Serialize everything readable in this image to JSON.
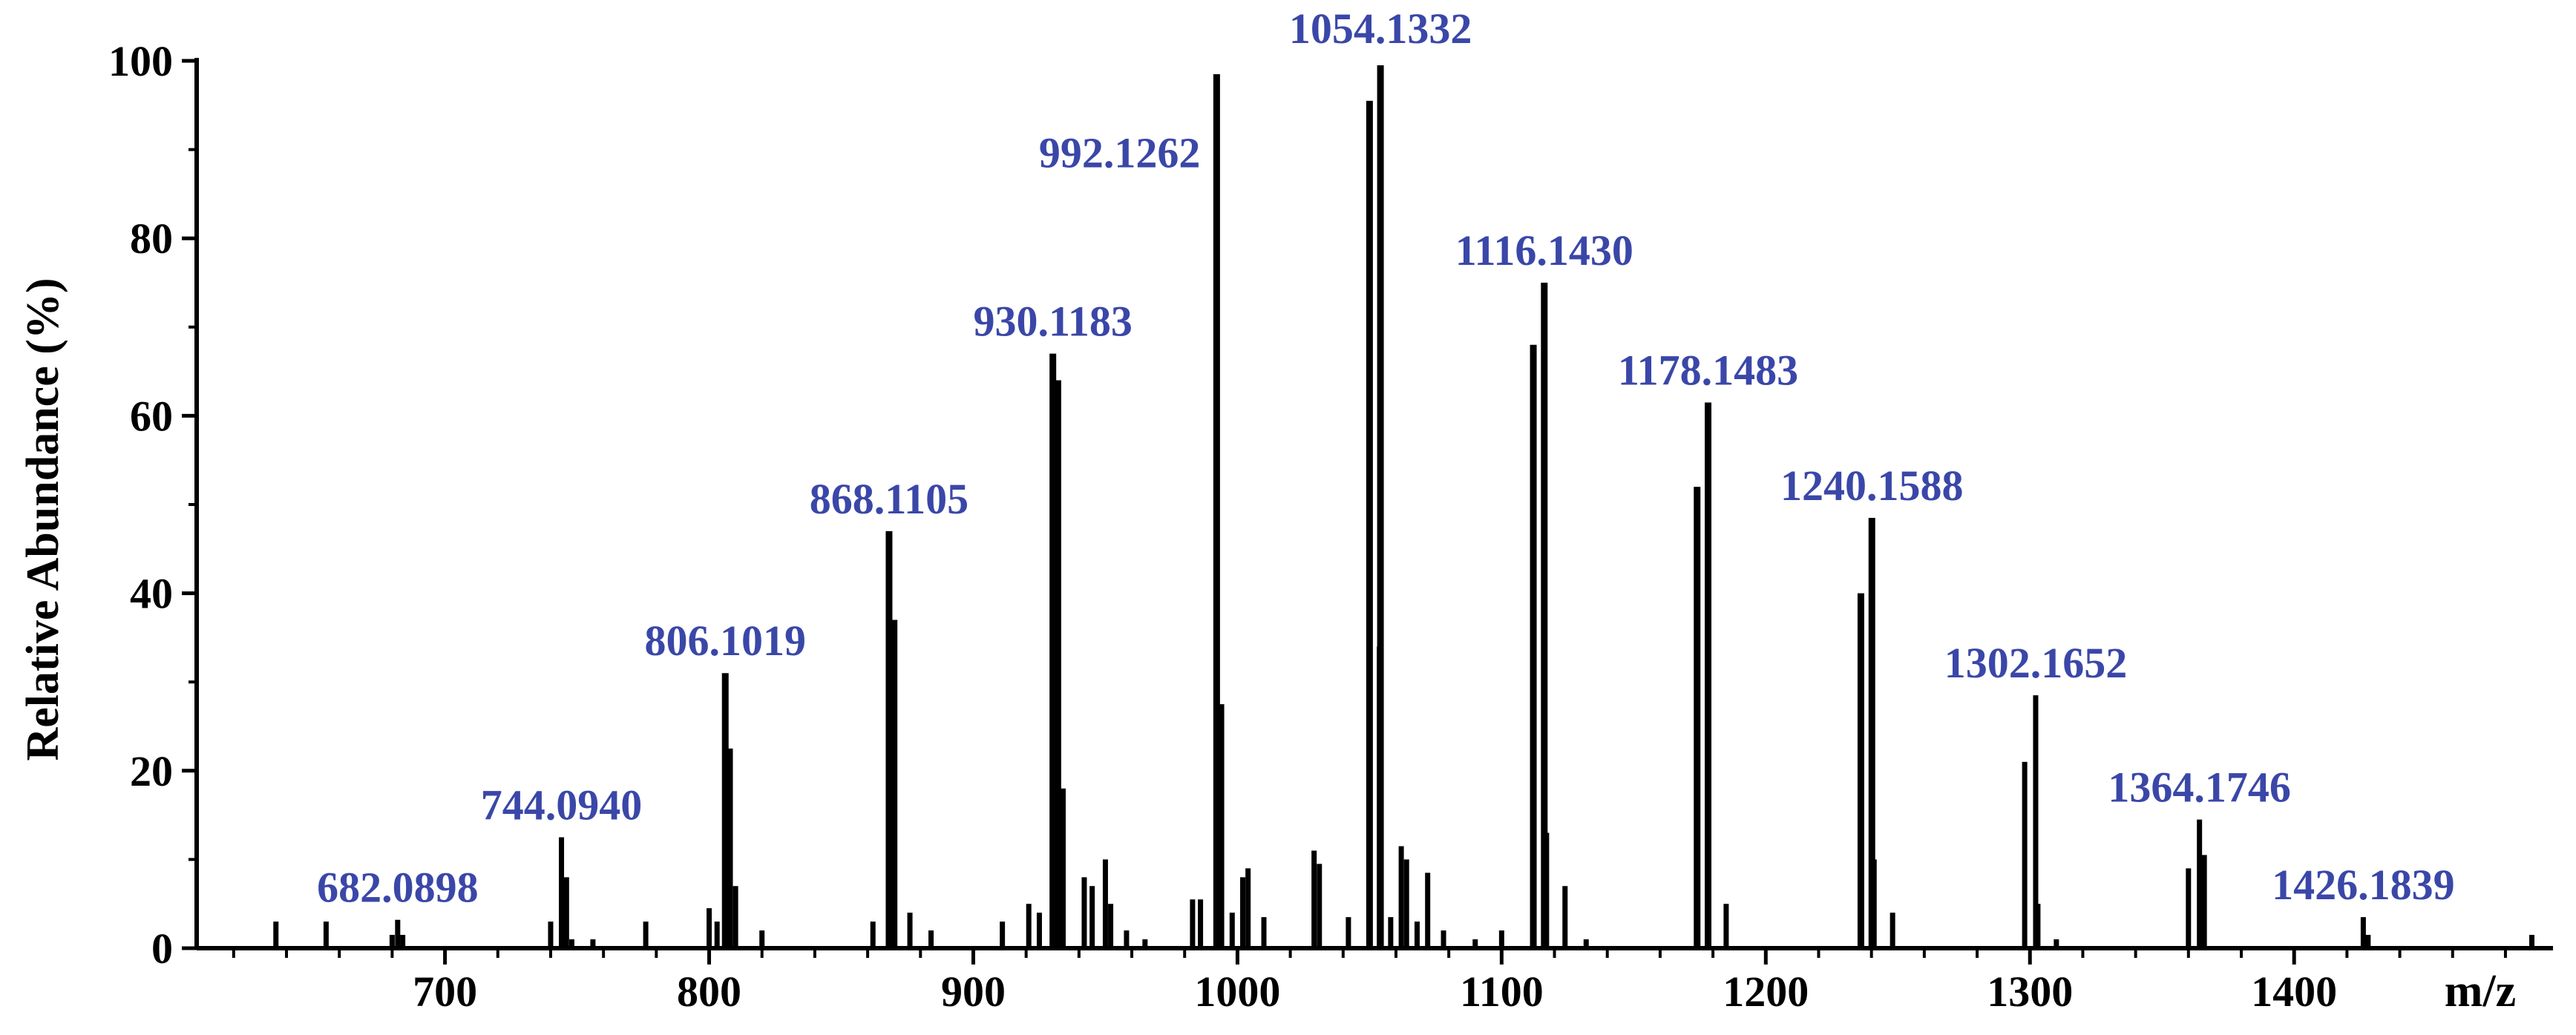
{
  "chart_data": {
    "type": "bar",
    "ylabel": "Relative Abundance (%)",
    "xlabel": "m/z",
    "xlim": [
      600,
      1500
    ],
    "ylim": [
      0,
      100
    ],
    "x_ticks": [
      700,
      800,
      900,
      1000,
      1100,
      1200,
      1300,
      1400
    ],
    "y_ticks": [
      0,
      20,
      40,
      60,
      80,
      100
    ],
    "grid": false,
    "legend": "none",
    "colors": {
      "bars": "#000000",
      "labels": "#3a47a8",
      "axes": "#000000"
    },
    "peaks": [
      {
        "x": 636,
        "y": 3
      },
      {
        "x": 655,
        "y": 3
      },
      {
        "x": 680,
        "y": 1.5
      },
      {
        "x": 682.0898,
        "y": 3.2,
        "label": "682.0898"
      },
      {
        "x": 684,
        "y": 1.5
      },
      {
        "x": 740,
        "y": 3
      },
      {
        "x": 744.094,
        "y": 12.5,
        "label": "744.0940"
      },
      {
        "x": 746,
        "y": 8
      },
      {
        "x": 748,
        "y": 1
      },
      {
        "x": 756,
        "y": 1
      },
      {
        "x": 776,
        "y": 3
      },
      {
        "x": 800,
        "y": 4.5
      },
      {
        "x": 803,
        "y": 3
      },
      {
        "x": 806.1019,
        "y": 31,
        "label": "806.1019"
      },
      {
        "x": 808,
        "y": 22.5
      },
      {
        "x": 810,
        "y": 7
      },
      {
        "x": 820,
        "y": 2
      },
      {
        "x": 862,
        "y": 3
      },
      {
        "x": 868.1105,
        "y": 47,
        "label": "868.1105"
      },
      {
        "x": 870,
        "y": 37
      },
      {
        "x": 876,
        "y": 4
      },
      {
        "x": 884,
        "y": 2
      },
      {
        "x": 911,
        "y": 3
      },
      {
        "x": 921,
        "y": 5
      },
      {
        "x": 925,
        "y": 4
      },
      {
        "x": 930.1183,
        "y": 67,
        "label": "930.1183"
      },
      {
        "x": 932,
        "y": 64
      },
      {
        "x": 934,
        "y": 18
      },
      {
        "x": 942,
        "y": 8
      },
      {
        "x": 945,
        "y": 7
      },
      {
        "x": 950,
        "y": 10
      },
      {
        "x": 952,
        "y": 5
      },
      {
        "x": 958,
        "y": 2
      },
      {
        "x": 965,
        "y": 1
      },
      {
        "x": 983,
        "y": 5.5
      },
      {
        "x": 986,
        "y": 5.5
      },
      {
        "x": 992.1262,
        "y": 98.5,
        "label": "992.1262"
      },
      {
        "x": 994,
        "y": 27.5
      },
      {
        "x": 998,
        "y": 4
      },
      {
        "x": 1002,
        "y": 8
      },
      {
        "x": 1004,
        "y": 9
      },
      {
        "x": 1010,
        "y": 3.5
      },
      {
        "x": 1029,
        "y": 11
      },
      {
        "x": 1031,
        "y": 9.5
      },
      {
        "x": 1042,
        "y": 3.5
      },
      {
        "x": 1050,
        "y": 95.5
      },
      {
        "x": 1054.1332,
        "y": 99.5,
        "label": "1054.1332"
      },
      {
        "x": 1054,
        "y": 34
      },
      {
        "x": 1058,
        "y": 3.5
      },
      {
        "x": 1062,
        "y": 11.5
      },
      {
        "x": 1064,
        "y": 10
      },
      {
        "x": 1068,
        "y": 3
      },
      {
        "x": 1072,
        "y": 8.5
      },
      {
        "x": 1078,
        "y": 2
      },
      {
        "x": 1090,
        "y": 1
      },
      {
        "x": 1100,
        "y": 2
      },
      {
        "x": 1112,
        "y": 68
      },
      {
        "x": 1116.143,
        "y": 75,
        "label": "1116.1430"
      },
      {
        "x": 1117,
        "y": 13
      },
      {
        "x": 1124,
        "y": 7
      },
      {
        "x": 1132,
        "y": 1
      },
      {
        "x": 1174,
        "y": 52
      },
      {
        "x": 1178.1483,
        "y": 61.5,
        "label": "1178.1483"
      },
      {
        "x": 1178,
        "y": 11.5
      },
      {
        "x": 1185,
        "y": 5
      },
      {
        "x": 1236,
        "y": 40
      },
      {
        "x": 1240.1588,
        "y": 48.5,
        "label": "1240.1588"
      },
      {
        "x": 1241,
        "y": 10
      },
      {
        "x": 1248,
        "y": 4
      },
      {
        "x": 1298,
        "y": 21
      },
      {
        "x": 1302.1652,
        "y": 28.5,
        "label": "1302.1652"
      },
      {
        "x": 1303,
        "y": 5
      },
      {
        "x": 1310,
        "y": 1
      },
      {
        "x": 1360,
        "y": 9
      },
      {
        "x": 1364.1746,
        "y": 14.5,
        "label": "1364.1746"
      },
      {
        "x": 1366,
        "y": 10.5
      },
      {
        "x": 1426.1839,
        "y": 3.5,
        "label": "1426.1839"
      },
      {
        "x": 1428,
        "y": 1.5
      },
      {
        "x": 1490,
        "y": 1.5
      }
    ]
  }
}
